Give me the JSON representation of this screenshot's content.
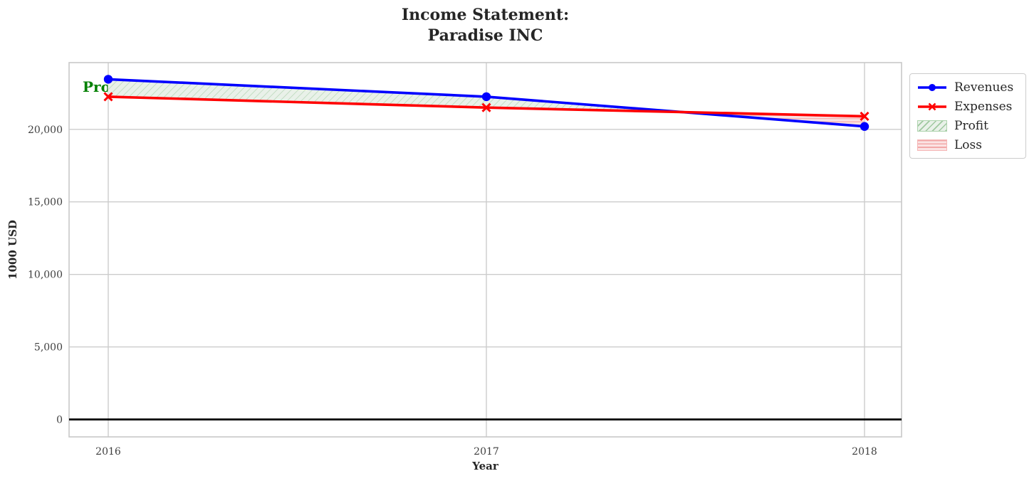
{
  "figure": {
    "title_line1": "Income Statement:",
    "title_line2": "Paradise INC"
  },
  "axes": {
    "xlabel": "Year",
    "ylabel": "1000 USD"
  },
  "annotation": {
    "label": "Profit",
    "color": "#008000"
  },
  "legend": {
    "items": [
      {
        "label": "Revenues",
        "swatch": "blue-line-circle-marker"
      },
      {
        "label": "Expenses",
        "swatch": "red-line-x-marker"
      },
      {
        "label": "Profit",
        "swatch": "green-diagonal-hatch-patch"
      },
      {
        "label": "Loss",
        "swatch": "pink-horizontal-hatch-patch"
      }
    ]
  },
  "chart_data": {
    "type": "line",
    "title": "Income Statement: Paradise INC",
    "xlabel": "Year",
    "ylabel": "1000 USD",
    "x": [
      2016,
      2017,
      2018
    ],
    "xtick_labels": [
      "2016",
      "2017",
      "2018"
    ],
    "series": [
      {
        "name": "Revenues",
        "color": "#0000ff",
        "marker": "circle",
        "values": [
          23450,
          22250,
          20200
        ]
      },
      {
        "name": "Expenses",
        "color": "#ff0000",
        "marker": "x",
        "values": [
          22250,
          21500,
          20900
        ]
      }
    ],
    "fills": [
      {
        "name": "Profit",
        "condition": "revenues >= expenses",
        "facecolor": "#e9f1e9",
        "hatch": "diagonal",
        "hatch_color": "#b7d7b7"
      },
      {
        "name": "Loss",
        "condition": "expenses >= revenues",
        "facecolor": "#fbe3e3",
        "hatch": "horizontal",
        "hatch_color": "#f5b5b5"
      }
    ],
    "annotations": [
      {
        "text": "Profit",
        "near_x": 2016,
        "near_y": 22600,
        "color": "#008000"
      }
    ],
    "yticks": [
      0,
      5000,
      10000,
      15000,
      20000
    ],
    "ytick_labels": [
      "0",
      "5,000",
      "10,000",
      "15,000",
      "20,000"
    ],
    "ylim": [
      -1200,
      24600
    ],
    "grid": true,
    "zero_line": 0,
    "legend_position": "outside upper right",
    "legend_entries": [
      "Revenues",
      "Expenses",
      "Profit",
      "Loss"
    ],
    "colors": {
      "revenues": "#0000ff",
      "expenses": "#ff0000",
      "grid": "#cccccc",
      "plot_border": "#c8c8c8",
      "zero_line": "#000000",
      "profit_text": "#008000"
    }
  }
}
